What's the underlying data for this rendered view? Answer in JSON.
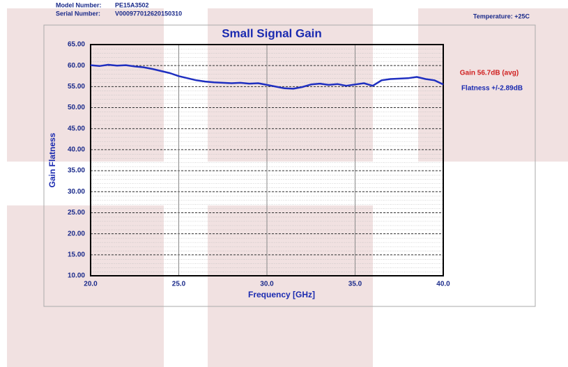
{
  "chart_data": {
    "type": "line",
    "title": "Small Signal Gain",
    "model_label": "Model Number:",
    "model_number": "PE15A3502",
    "serial_label": "Serial Number:",
    "serial_number": "V000977012620150310",
    "temperature": "Temperature: +25C",
    "annotations": [
      "Gain 56.7dB (avg)",
      "Flatness +/-2.89dB"
    ],
    "xlabel": "Frequency [GHz]",
    "ylabel": "Gain Flatness",
    "x": [
      20,
      20.5,
      21,
      21.5,
      22,
      22.5,
      23,
      23.5,
      24,
      24.5,
      25,
      25.5,
      26,
      26.5,
      27,
      27.5,
      28,
      28.5,
      29,
      29.5,
      30,
      30.5,
      31,
      31.5,
      32,
      32.5,
      33,
      33.5,
      34,
      34.5,
      35,
      35.5,
      36,
      36.5,
      37,
      37.5,
      38,
      38.5,
      39,
      39.5,
      40
    ],
    "series": [
      {
        "name": "Gain",
        "color": "#1f2fc0",
        "values": [
          60.1,
          59.9,
          60.2,
          60.0,
          60.1,
          59.8,
          59.6,
          59.2,
          58.7,
          58.2,
          57.5,
          57.0,
          56.5,
          56.2,
          56.0,
          55.9,
          55.8,
          55.9,
          55.7,
          55.8,
          55.4,
          55.0,
          54.6,
          54.5,
          54.9,
          55.5,
          55.7,
          55.4,
          55.6,
          55.2,
          55.5,
          55.8,
          55.2,
          56.5,
          56.8,
          56.9,
          57.0,
          57.3,
          56.8,
          56.5,
          55.5
        ]
      }
    ],
    "xlim": [
      20,
      40
    ],
    "ylim": [
      10,
      65
    ],
    "xticks": [
      {
        "value": 20,
        "label": "20.0"
      },
      {
        "value": 25,
        "label": "25.0"
      },
      {
        "value": 30,
        "label": "30.0"
      },
      {
        "value": 35,
        "label": "35.0"
      },
      {
        "value": 40,
        "label": "40.0"
      }
    ],
    "yticks": [
      {
        "value": 10,
        "label": "10.00"
      },
      {
        "value": 15,
        "label": "15.00"
      },
      {
        "value": 20,
        "label": "20.00"
      },
      {
        "value": 25,
        "label": "25.00"
      },
      {
        "value": 30,
        "label": "30.00"
      },
      {
        "value": 35,
        "label": "35.00"
      },
      {
        "value": 40,
        "label": "40.00"
      },
      {
        "value": 45,
        "label": "45.00"
      },
      {
        "value": 50,
        "label": "50.00"
      },
      {
        "value": 55,
        "label": "55.00"
      },
      {
        "value": 60,
        "label": "60.00"
      },
      {
        "value": 65,
        "label": "65.00"
      }
    ],
    "grid": true
  }
}
